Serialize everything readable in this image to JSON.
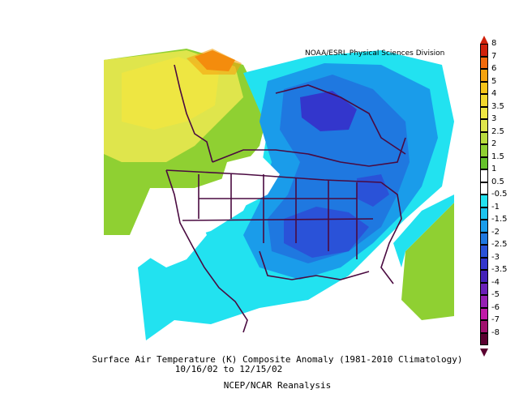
{
  "credit": "NOAA/ESRL Physical Sciences Division",
  "caption": {
    "line1": "Surface Air Temperature (K) Composite Anomaly (1981-2010 Climatology)",
    "line2": "10/16/02 to 12/15/02",
    "line3": "NCEP/NCAR Reanalysis"
  },
  "colorbar": {
    "labels": [
      "8",
      "7",
      "6",
      "5",
      "4",
      "3.5",
      "3",
      "2.5",
      "2",
      "1.5",
      "1",
      "0.5",
      "-0.5",
      "-1",
      "-1.5",
      "-2",
      "-2.5",
      "-3",
      "-3.5",
      "-4",
      "-5",
      "-6",
      "-7",
      "-8"
    ],
    "colors": [
      "#d0200a",
      "#f26a0c",
      "#f5a30f",
      "#f5c418",
      "#f2d82c",
      "#eee642",
      "#dfe54c",
      "#b9dc3e",
      "#8fd032",
      "#66c22c",
      "#ffffff",
      "#ffffff",
      "#22e2f0",
      "#1cc4ee",
      "#1a9cea",
      "#1f78e0",
      "#2a52d8",
      "#3336cc",
      "#4422b8",
      "#6a20b8",
      "#9620b4",
      "#c01aa8",
      "#a0106e",
      "#5a0030"
    ]
  },
  "map": {
    "region": "North America",
    "anomaly_fields": [
      {
        "label": "positive anomaly Alaska / NW Canada",
        "range": [
          1.5,
          5
        ],
        "color": "#eee642"
      },
      {
        "label": "strongest positive core NW",
        "range": [
          5,
          6
        ],
        "color": "#f26a0c"
      },
      {
        "label": "negative anomaly central/eastern US & Canada",
        "range": [
          -3.5,
          -0.5
        ],
        "color": "#2a52d8"
      },
      {
        "label": "positive anomaly Caribbean",
        "range": [
          0.5,
          1.5
        ],
        "color": "#8fd032"
      }
    ]
  }
}
